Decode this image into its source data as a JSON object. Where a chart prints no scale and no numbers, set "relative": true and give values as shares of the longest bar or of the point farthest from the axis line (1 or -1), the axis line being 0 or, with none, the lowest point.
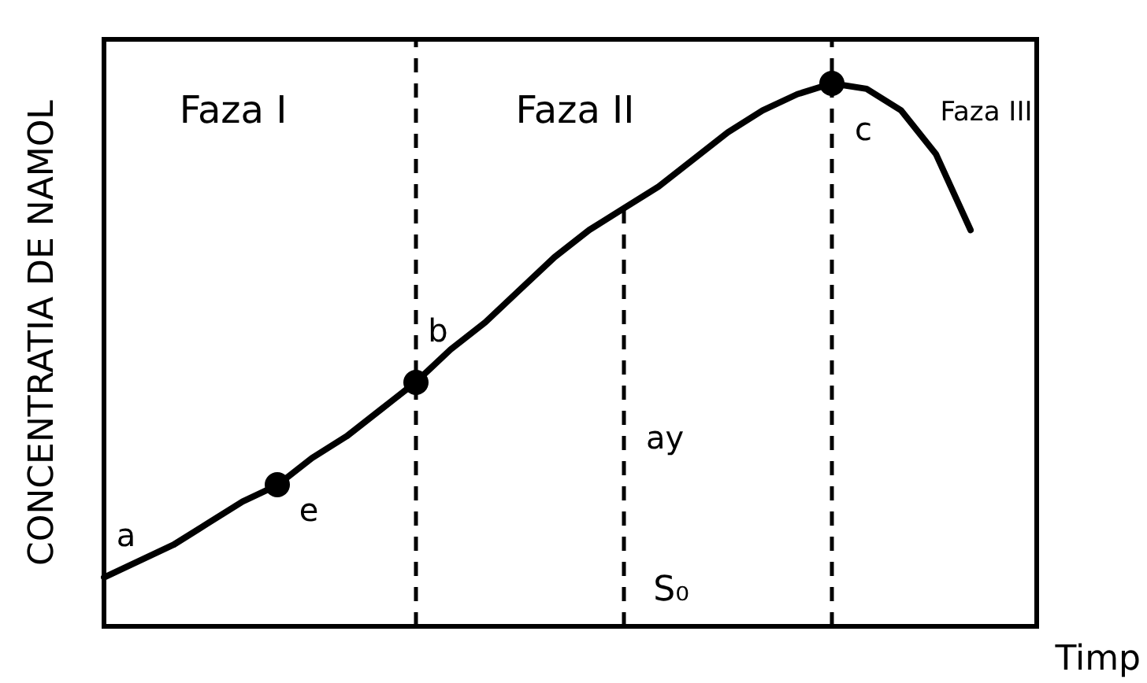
{
  "chart_data": {
    "type": "line",
    "relative": true,
    "xlabel": "Timp",
    "ylabel": "CONCENTRATIA DE NAMOL",
    "categories": [
      null,
      null,
      null,
      null,
      null,
      null,
      null,
      null,
      null,
      null,
      null,
      null,
      null,
      null,
      null,
      null,
      null,
      null,
      null,
      null,
      null,
      null,
      null,
      null,
      null,
      null
    ],
    "series": [
      {
        "color": "#000000",
        "marker": "none",
        "line_style": "solid",
        "values": [
          0.09,
          0.12,
          0.15,
          0.19,
          0.23,
          0.26,
          0.31,
          0.35,
          0.4,
          0.45,
          0.51,
          0.56,
          0.62,
          0.68,
          0.73,
          0.77,
          0.81,
          0.86,
          0.91,
          0.95,
          0.98,
          1.0,
          0.99,
          0.95,
          0.87,
          0.73
        ]
      }
    ],
    "annotations": [
      "Faza I",
      "Faza II",
      "Faza III",
      "a",
      "e",
      "b",
      "c",
      "ay",
      "S₀"
    ],
    "legend": false,
    "grid": "x"
  }
}
